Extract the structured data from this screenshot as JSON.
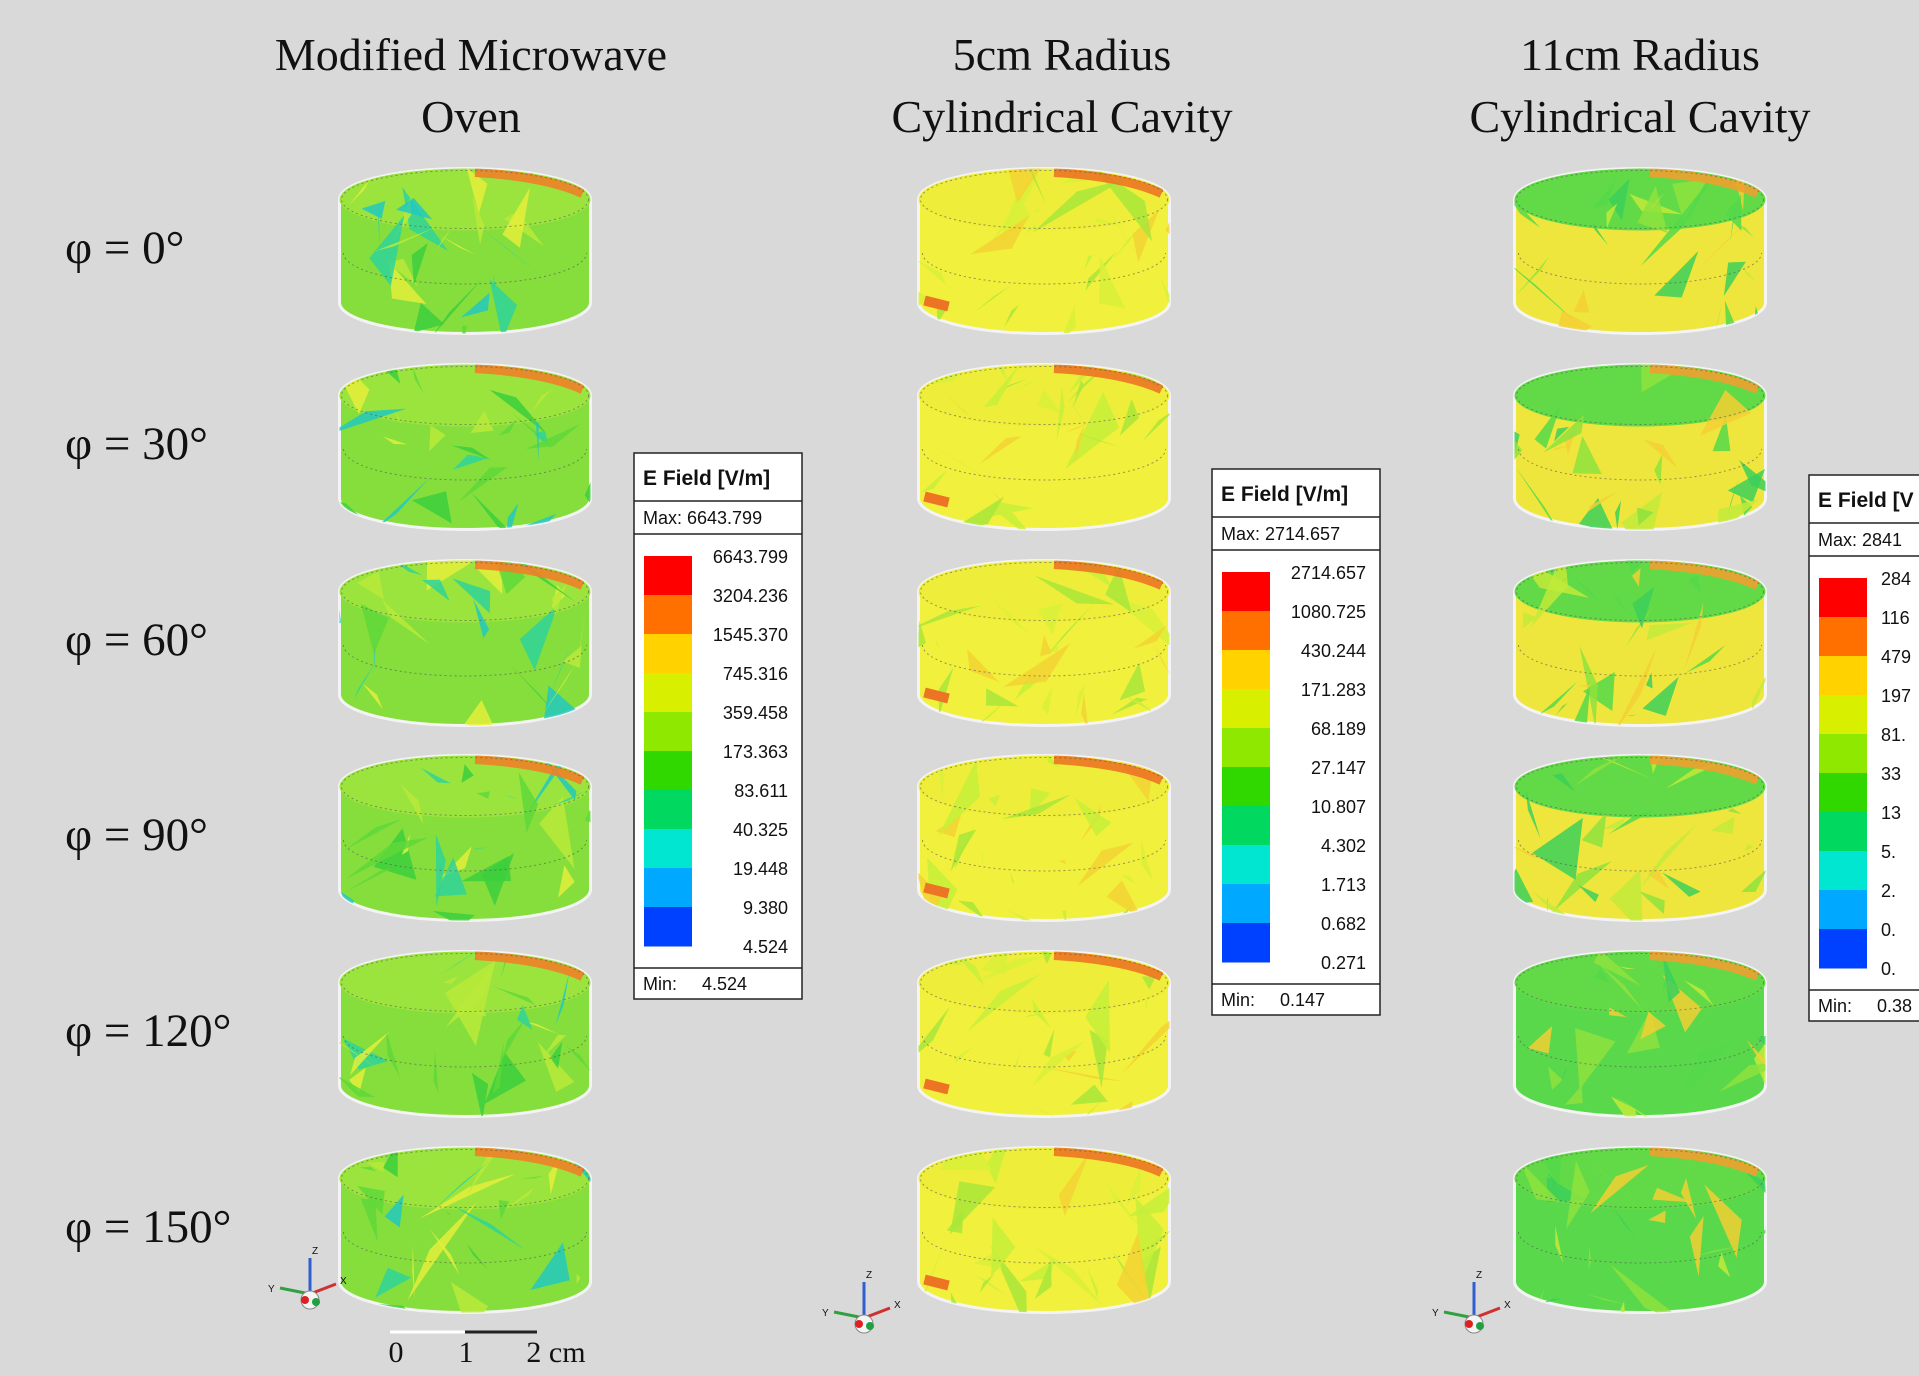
{
  "columns": [
    {
      "title": [
        "Modified Microwave",
        "Oven"
      ],
      "legend": {
        "title": "E Field [V/m]",
        "max": "Max: 6643.799",
        "levels": [
          "6643.799",
          "3204.236",
          "1545.370",
          "745.316",
          "359.458",
          "173.363",
          "83.611",
          "40.325",
          "19.448",
          "9.380",
          "4.524"
        ],
        "min_label": "Min:",
        "min": "4.524"
      }
    },
    {
      "title": [
        "5cm Radius",
        "Cylindrical Cavity"
      ],
      "legend": {
        "title": "E Field [V/m]",
        "max": "Max: 2714.657",
        "levels": [
          "2714.657",
          "1080.725",
          "430.244",
          "171.283",
          "68.189",
          "27.147",
          "10.807",
          "4.302",
          "1.713",
          "0.682",
          "0.271"
        ],
        "min_label": "Min:",
        "min": "0.147"
      }
    },
    {
      "title": [
        "11cm Radius",
        "Cylindrical Cavity"
      ],
      "legend": {
        "title": "E Field [V",
        "max": "Max: 2841",
        "levels": [
          "284",
          "116",
          "479",
          "197",
          "81.",
          "33",
          "13",
          "5.",
          "2.",
          "0.",
          "0."
        ],
        "min_label": "Min:",
        "min": "0.38"
      }
    }
  ],
  "rows": [
    "φ = 0°",
    "φ = 30°",
    "φ = 60°",
    "φ = 90°",
    "φ = 120°",
    "φ = 150°"
  ],
  "scale_bar": [
    "0",
    "1",
    "2 cm"
  ],
  "triads": [
    {
      "z": "Z",
      "y": "Y",
      "x": "X"
    },
    {
      "z": "Z",
      "y": "Y",
      "x": "X"
    },
    {
      "z": "Z",
      "y": "Y",
      "x": "X"
    }
  ]
}
